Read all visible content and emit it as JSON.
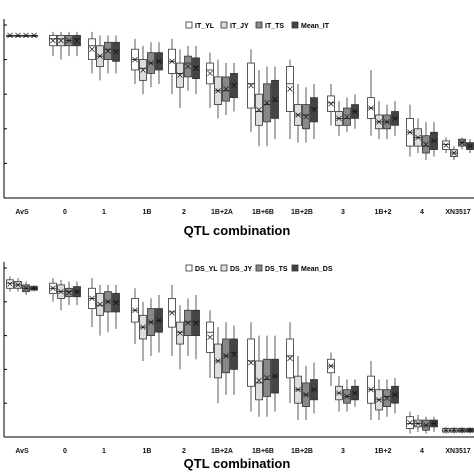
{
  "chart_data": [
    {
      "type": "box",
      "panel": "top",
      "xlabel": "QTL combination",
      "ylabel": "",
      "ylim": [
        0,
        10
      ],
      "grid": false,
      "legend_position": "top-right",
      "categories": [
        "AvS",
        "0",
        "1",
        "1B",
        "2",
        "1B+2A",
        "1B+6B",
        "1B+2B",
        "3",
        "1B+2",
        "4",
        "XN3517"
      ],
      "series": [
        {
          "name": "IT_YL",
          "color": "#ffffff",
          "boxes": [
            [
              9.4,
              9.4,
              9.4,
              9.4,
              9.4
            ],
            [
              8.2,
              8.8,
              9.2,
              9.4,
              9.6
            ],
            [
              7.2,
              8.0,
              8.8,
              9.2,
              9.6
            ],
            [
              6.6,
              7.4,
              8.0,
              8.6,
              9.2
            ],
            [
              6.0,
              7.2,
              7.9,
              8.6,
              9.2
            ],
            [
              5.2,
              6.6,
              7.4,
              7.8,
              8.4
            ],
            [
              3.8,
              5.2,
              6.6,
              7.8,
              8.6
            ],
            [
              3.4,
              5.0,
              6.6,
              7.6,
              8.0
            ],
            [
              4.2,
              5.0,
              5.5,
              5.9,
              6.6
            ],
            [
              3.6,
              4.6,
              5.2,
              5.8,
              7.4
            ],
            [
              2.4,
              3.0,
              3.8,
              4.6,
              5.4
            ],
            [
              2.6,
              2.8,
              3.1,
              3.3,
              3.5
            ]
          ]
        },
        {
          "name": "IT_JY",
          "color": "#dddddd",
          "boxes": [
            [
              9.4,
              9.4,
              9.4,
              9.4,
              9.4
            ],
            [
              8.0,
              8.8,
              9.2,
              9.4,
              9.6
            ],
            [
              6.8,
              7.6,
              8.2,
              8.8,
              9.4
            ],
            [
              6.0,
              6.8,
              7.5,
              8.0,
              8.8
            ],
            [
              5.2,
              6.4,
              7.2,
              7.8,
              8.6
            ],
            [
              4.6,
              5.4,
              6.2,
              7.0,
              8.0
            ],
            [
              3.0,
              4.2,
              5.0,
              6.0,
              7.4
            ],
            [
              3.2,
              4.2,
              4.8,
              5.4,
              6.6
            ],
            [
              3.6,
              4.2,
              4.6,
              5.0,
              5.6
            ],
            [
              3.4,
              4.0,
              4.4,
              4.8,
              5.6
            ],
            [
              2.6,
              3.0,
              3.5,
              4.0,
              4.6
            ],
            [
              2.2,
              2.4,
              2.6,
              2.8,
              3.0
            ]
          ]
        },
        {
          "name": "IT_TS",
          "color": "#888888",
          "boxes": [
            [
              9.4,
              9.4,
              9.4,
              9.4,
              9.4
            ],
            [
              8.2,
              8.8,
              9.1,
              9.4,
              9.6
            ],
            [
              7.2,
              8.0,
              8.6,
              9.0,
              9.4
            ],
            [
              6.4,
              7.2,
              7.8,
              8.4,
              9.0
            ],
            [
              6.2,
              7.0,
              7.8,
              8.2,
              8.8
            ],
            [
              4.8,
              5.6,
              6.2,
              7.0,
              7.8
            ],
            [
              3.0,
              4.4,
              5.4,
              6.6,
              7.6
            ],
            [
              3.2,
              4.0,
              4.8,
              5.4,
              6.4
            ],
            [
              3.8,
              4.2,
              4.6,
              5.2,
              5.8
            ],
            [
              3.4,
              4.0,
              4.4,
              4.8,
              5.4
            ],
            [
              2.2,
              2.6,
              3.0,
              3.6,
              4.4
            ],
            [
              2.8,
              3.0,
              3.2,
              3.4,
              3.5
            ]
          ]
        },
        {
          "name": "Mean_IT",
          "color": "#444444",
          "boxes": [
            [
              9.4,
              9.4,
              9.4,
              9.4,
              9.4
            ],
            [
              8.2,
              8.8,
              9.2,
              9.4,
              9.6
            ],
            [
              7.2,
              7.9,
              8.5,
              9.0,
              9.4
            ],
            [
              6.6,
              7.4,
              7.9,
              8.4,
              9.0
            ],
            [
              6.0,
              6.9,
              7.6,
              8.1,
              8.8
            ],
            [
              5.0,
              5.8,
              6.6,
              7.2,
              7.8
            ],
            [
              3.4,
              4.6,
              5.6,
              6.8,
              7.6
            ],
            [
              3.4,
              4.4,
              5.2,
              5.8,
              6.6
            ],
            [
              4.0,
              4.6,
              5.0,
              5.4,
              6.0
            ],
            [
              3.6,
              4.2,
              4.6,
              5.0,
              5.6
            ],
            [
              2.4,
              2.8,
              3.3,
              3.8,
              4.4
            ],
            [
              2.6,
              2.8,
              3.0,
              3.2,
              3.4
            ]
          ]
        }
      ]
    },
    {
      "type": "box",
      "panel": "bottom",
      "xlabel": "QTL combination",
      "ylabel": "",
      "ylim": [
        0,
        100
      ],
      "grid": false,
      "legend_position": "top-right",
      "categories": [
        "AvS",
        "0",
        "1",
        "1B",
        "2",
        "1B+2A",
        "1B+6B",
        "1B+2B",
        "3",
        "1B+2",
        "4",
        "XN3517"
      ],
      "series": [
        {
          "name": "DS_YL",
          "color": "#ffffff",
          "boxes": [
            [
              86,
              88,
              91,
              93,
              95
            ],
            [
              80,
              85,
              88,
              91,
              94
            ],
            [
              65,
              76,
              82,
              88,
              94
            ],
            [
              55,
              68,
              75,
              82,
              88
            ],
            [
              48,
              65,
              74,
              82,
              90
            ],
            [
              35,
              50,
              62,
              68,
              75
            ],
            [
              15,
              30,
              45,
              58,
              68
            ],
            [
              20,
              35,
              48,
              58,
              68
            ],
            [
              30,
              38,
              42,
              46,
              50
            ],
            [
              10,
              20,
              28,
              36,
              45
            ],
            [
              2,
              5,
              8,
              12,
              15
            ],
            [
              2,
              3,
              4,
              5,
              6
            ]
          ]
        },
        {
          "name": "DS_JY",
          "color": "#dddddd",
          "boxes": [
            [
              86,
              88,
              90,
              92,
              94
            ],
            [
              75,
              82,
              86,
              90,
              93
            ],
            [
              60,
              72,
              78,
              85,
              90
            ],
            [
              45,
              58,
              65,
              72,
              80
            ],
            [
              40,
              55,
              62,
              68,
              78
            ],
            [
              20,
              35,
              45,
              55,
              65
            ],
            [
              12,
              22,
              32,
              45,
              60
            ],
            [
              10,
              20,
              28,
              36,
              48
            ],
            [
              15,
              22,
              26,
              30,
              36
            ],
            [
              10,
              16,
              22,
              28,
              34
            ],
            [
              3,
              6,
              8,
              10,
              13
            ],
            [
              2,
              3,
              4,
              5,
              6
            ]
          ]
        },
        {
          "name": "DS_TS",
          "color": "#888888",
          "boxes": [
            [
              84,
              86,
              88,
              90,
              92
            ],
            [
              78,
              83,
              86,
              88,
              92
            ],
            [
              62,
              74,
              80,
              86,
              90
            ],
            [
              48,
              60,
              68,
              76,
              82
            ],
            [
              48,
              60,
              68,
              75,
              82
            ],
            [
              25,
              38,
              48,
              58,
              68
            ],
            [
              12,
              24,
              34,
              46,
              60
            ],
            [
              10,
              18,
              25,
              32,
              42
            ],
            [
              15,
              20,
              24,
              28,
              34
            ],
            [
              12,
              18,
              24,
              28,
              34
            ],
            [
              2,
              4,
              7,
              10,
              12
            ],
            [
              2,
              3,
              4,
              5,
              6
            ]
          ]
        },
        {
          "name": "Mean_DS",
          "color": "#444444",
          "boxes": [
            [
              86,
              87,
              88,
              89,
              90
            ],
            [
              78,
              83,
              86,
              89,
              92
            ],
            [
              64,
              74,
              80,
              85,
              90
            ],
            [
              50,
              62,
              69,
              76,
              84
            ],
            [
              46,
              60,
              68,
              75,
              84
            ],
            [
              25,
              40,
              50,
              58,
              66
            ],
            [
              15,
              26,
              36,
              46,
              60
            ],
            [
              14,
              22,
              28,
              34,
              44
            ],
            [
              18,
              22,
              26,
              30,
              34
            ],
            [
              14,
              20,
              25,
              30,
              35
            ],
            [
              3,
              6,
              8,
              10,
              12
            ],
            [
              2,
              3,
              4,
              5,
              6
            ]
          ]
        }
      ]
    }
  ]
}
